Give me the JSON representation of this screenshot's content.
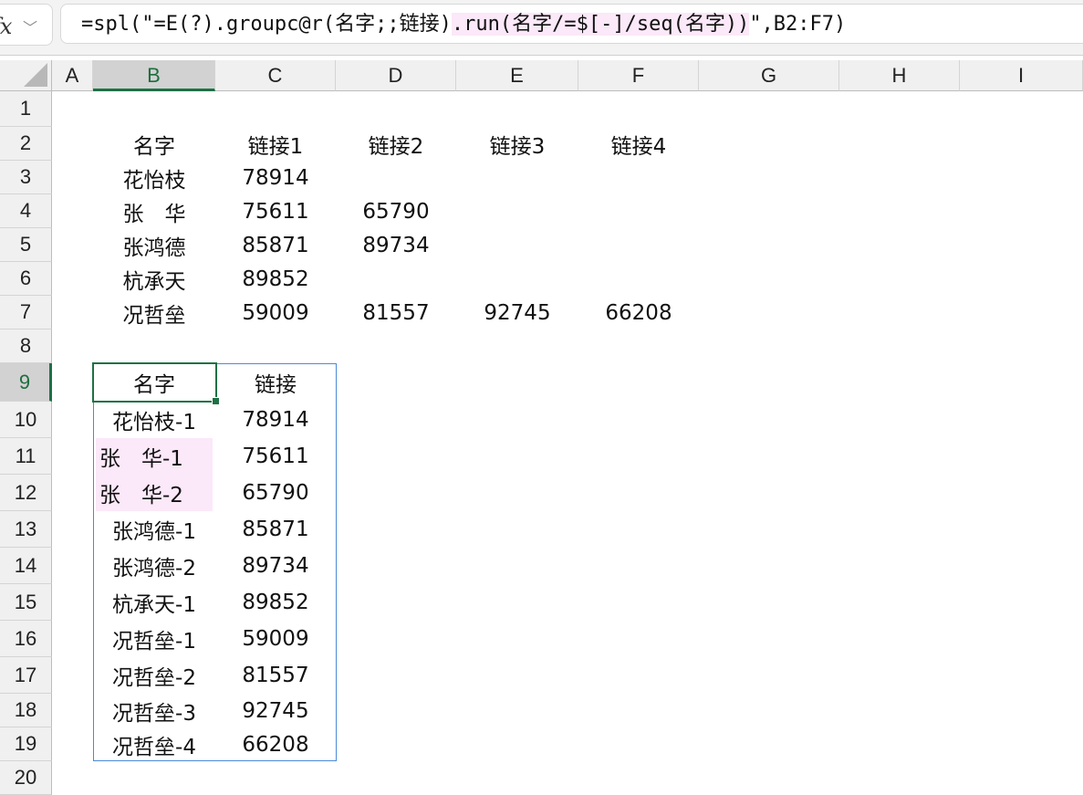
{
  "formula_bar": {
    "fx_label": "fx",
    "formula_before": "=spl(\"=E(?).groupc@r(名字;;链接)",
    "formula_highlight": ".run(名字/=$[-]/seq(名字))",
    "formula_after": "\",B2:F7)"
  },
  "columns": [
    "A",
    "B",
    "C",
    "D",
    "E",
    "F",
    "G",
    "H",
    "I"
  ],
  "selected_column": "B",
  "rows": [
    "1",
    "2",
    "3",
    "4",
    "5",
    "6",
    "7",
    "8",
    "9",
    "10",
    "11",
    "12",
    "13",
    "14",
    "15",
    "16",
    "17",
    "18",
    "19",
    "20"
  ],
  "selected_row": "9",
  "source_table": {
    "headers": [
      "名字",
      "链接1",
      "链接2",
      "链接3",
      "链接4"
    ],
    "rows": [
      [
        "花怡枝",
        "78914",
        "",
        "",
        ""
      ],
      [
        "张　华",
        "75611",
        "65790",
        "",
        ""
      ],
      [
        "张鸿德",
        "85871",
        "89734",
        "",
        ""
      ],
      [
        "杭承天",
        "89852",
        "",
        "",
        ""
      ],
      [
        "况哲垒",
        "59009",
        "81557",
        "92745",
        "66208"
      ]
    ]
  },
  "result_table": {
    "headers": [
      "名字",
      "链接"
    ],
    "rows": [
      [
        "花怡枝-1",
        "78914"
      ],
      [
        "张　华-1",
        "75611"
      ],
      [
        "张　华-2",
        "65790"
      ],
      [
        "张鸿德-1",
        "85871"
      ],
      [
        "张鸿德-2",
        "89734"
      ],
      [
        "杭承天-1",
        "89852"
      ],
      [
        "况哲垒-1",
        "59009"
      ],
      [
        "况哲垒-2",
        "81557"
      ],
      [
        "况哲垒-3",
        "92745"
      ],
      [
        "况哲垒-4",
        "66208"
      ]
    ]
  },
  "highlight_color": "#fbe8f8",
  "selection_color": "#1e7145"
}
